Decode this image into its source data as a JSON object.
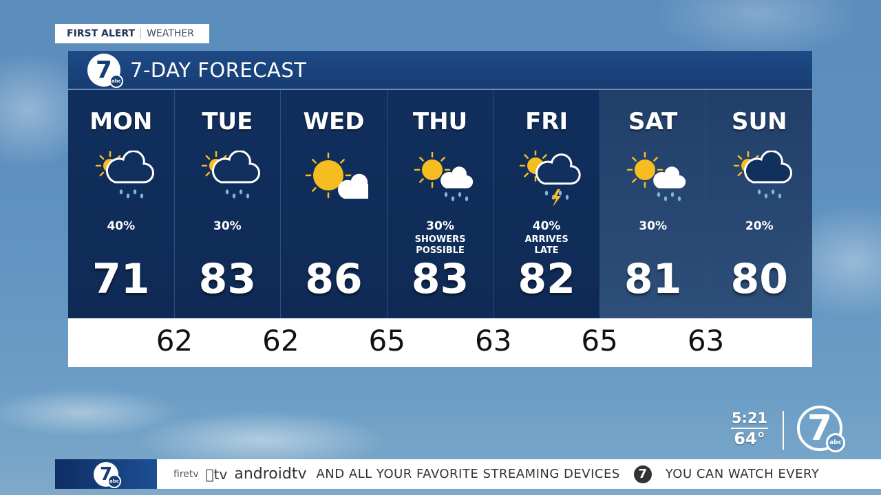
{
  "brand": {
    "alert_bold": "FIRST ALERT",
    "alert_light": "WEATHER",
    "logo_text": "7",
    "logo_sub": "abc"
  },
  "forecast": {
    "title": "7-DAY FORECAST",
    "days": [
      {
        "name": "MON",
        "icon": "sun-cloud-rain",
        "precip": "40%",
        "note": "",
        "high": "71",
        "shade": "dark"
      },
      {
        "name": "TUE",
        "icon": "sun-cloud-rain",
        "precip": "30%",
        "note": "",
        "high": "83",
        "shade": "dark"
      },
      {
        "name": "WED",
        "icon": "mostly-sunny",
        "precip": "",
        "note": "",
        "high": "86",
        "shade": "dark"
      },
      {
        "name": "THU",
        "icon": "sun-shower",
        "precip": "30%",
        "note": "SHOWERS\nPOSSIBLE",
        "high": "83",
        "shade": "dark"
      },
      {
        "name": "FRI",
        "icon": "sun-thunderstorm",
        "precip": "40%",
        "note": "ARRIVES\nLATE",
        "high": "82",
        "shade": "dark"
      },
      {
        "name": "SAT",
        "icon": "sun-shower",
        "precip": "30%",
        "note": "",
        "high": "81",
        "shade": "light"
      },
      {
        "name": "SUN",
        "icon": "sun-cloud-rain",
        "precip": "20%",
        "note": "",
        "high": "80",
        "shade": "light"
      }
    ],
    "lows": [
      "62",
      "62",
      "65",
      "63",
      "65",
      "63"
    ]
  },
  "status": {
    "time": "5:21",
    "temp": "64°"
  },
  "ticker": {
    "firetv": "firetv",
    "appletv": "tv",
    "androidtv": "androidtv",
    "msg1": "AND ALL YOUR FAVORITE STREAMING DEVICES",
    "msg2": "YOU CAN WATCH EVERY"
  },
  "colors": {
    "panel_dark": "#0f2a55",
    "header": "#1e4a86",
    "sun": "#f5bd1f",
    "rain": "#7fb5e0"
  }
}
